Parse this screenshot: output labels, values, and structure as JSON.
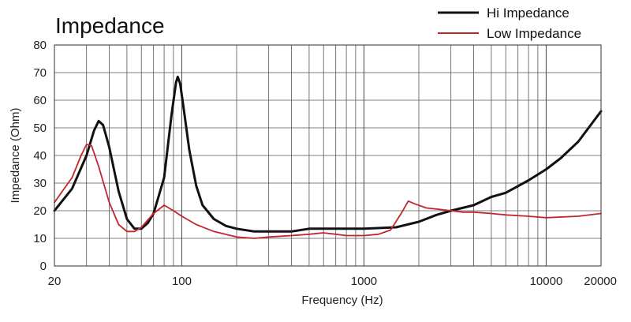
{
  "chart_data": {
    "type": "line",
    "title": "Impedance",
    "xlabel": "Frequency (Hz)",
    "ylabel": "Impedance (Ohm)",
    "xscale": "log",
    "xlim": [
      20,
      20000
    ],
    "ylim": [
      0,
      80
    ],
    "x_ticks": [
      20,
      100,
      1000,
      10000,
      20000
    ],
    "x_tick_labels": [
      "20",
      "100",
      "1000",
      "10000",
      "20000"
    ],
    "y_ticks": [
      0,
      10,
      20,
      30,
      40,
      50,
      60,
      70,
      80
    ],
    "y_tick_labels": [
      "0",
      "10",
      "20",
      "30",
      "40",
      "50",
      "60",
      "70",
      "80"
    ],
    "grid": true,
    "legend_position": "top-right",
    "series": [
      {
        "name": "Hi Impedance",
        "color": "#111111",
        "points": [
          [
            20,
            20
          ],
          [
            25,
            28
          ],
          [
            30,
            40
          ],
          [
            33,
            49
          ],
          [
            35,
            52.5
          ],
          [
            37,
            51
          ],
          [
            40,
            43
          ],
          [
            45,
            27
          ],
          [
            50,
            17
          ],
          [
            55,
            13.5
          ],
          [
            60,
            13.5
          ],
          [
            65,
            15.5
          ],
          [
            70,
            19
          ],
          [
            80,
            32
          ],
          [
            88,
            55
          ],
          [
            93,
            66.5
          ],
          [
            95,
            68.5
          ],
          [
            98,
            66
          ],
          [
            102,
            58
          ],
          [
            110,
            42
          ],
          [
            120,
            29
          ],
          [
            130,
            22
          ],
          [
            150,
            17
          ],
          [
            175,
            14.5
          ],
          [
            200,
            13.5
          ],
          [
            250,
            12.5
          ],
          [
            300,
            12.5
          ],
          [
            400,
            12.5
          ],
          [
            500,
            13.5
          ],
          [
            600,
            13.5
          ],
          [
            800,
            13.5
          ],
          [
            1000,
            13.5
          ],
          [
            1500,
            14
          ],
          [
            2000,
            16
          ],
          [
            2500,
            18.5
          ],
          [
            3000,
            20
          ],
          [
            4000,
            22
          ],
          [
            5000,
            25
          ],
          [
            6000,
            26.5
          ],
          [
            8000,
            31
          ],
          [
            10000,
            35
          ],
          [
            12000,
            39
          ],
          [
            15000,
            45
          ],
          [
            20000,
            56
          ]
        ]
      },
      {
        "name": "Low Impedance",
        "color": "#c0272d",
        "points": [
          [
            20,
            23
          ],
          [
            25,
            32
          ],
          [
            28,
            40
          ],
          [
            30,
            44
          ],
          [
            32,
            43.5
          ],
          [
            35,
            36
          ],
          [
            40,
            23
          ],
          [
            45,
            15
          ],
          [
            50,
            12.5
          ],
          [
            55,
            12.5
          ],
          [
            60,
            14
          ],
          [
            70,
            19
          ],
          [
            80,
            22
          ],
          [
            90,
            20
          ],
          [
            100,
            18
          ],
          [
            120,
            15
          ],
          [
            150,
            12.5
          ],
          [
            200,
            10.5
          ],
          [
            250,
            10
          ],
          [
            300,
            10.5
          ],
          [
            400,
            11
          ],
          [
            500,
            11.5
          ],
          [
            600,
            12
          ],
          [
            700,
            11.5
          ],
          [
            800,
            11
          ],
          [
            1000,
            11
          ],
          [
            1200,
            11.5
          ],
          [
            1400,
            13
          ],
          [
            1600,
            19
          ],
          [
            1750,
            23.5
          ],
          [
            1900,
            22.5
          ],
          [
            2200,
            21
          ],
          [
            2600,
            20.5
          ],
          [
            3000,
            20
          ],
          [
            3500,
            19.5
          ],
          [
            4000,
            19.5
          ],
          [
            5000,
            19
          ],
          [
            6000,
            18.5
          ],
          [
            8000,
            18
          ],
          [
            10000,
            17.5
          ],
          [
            15000,
            18
          ],
          [
            20000,
            19
          ]
        ]
      }
    ]
  }
}
